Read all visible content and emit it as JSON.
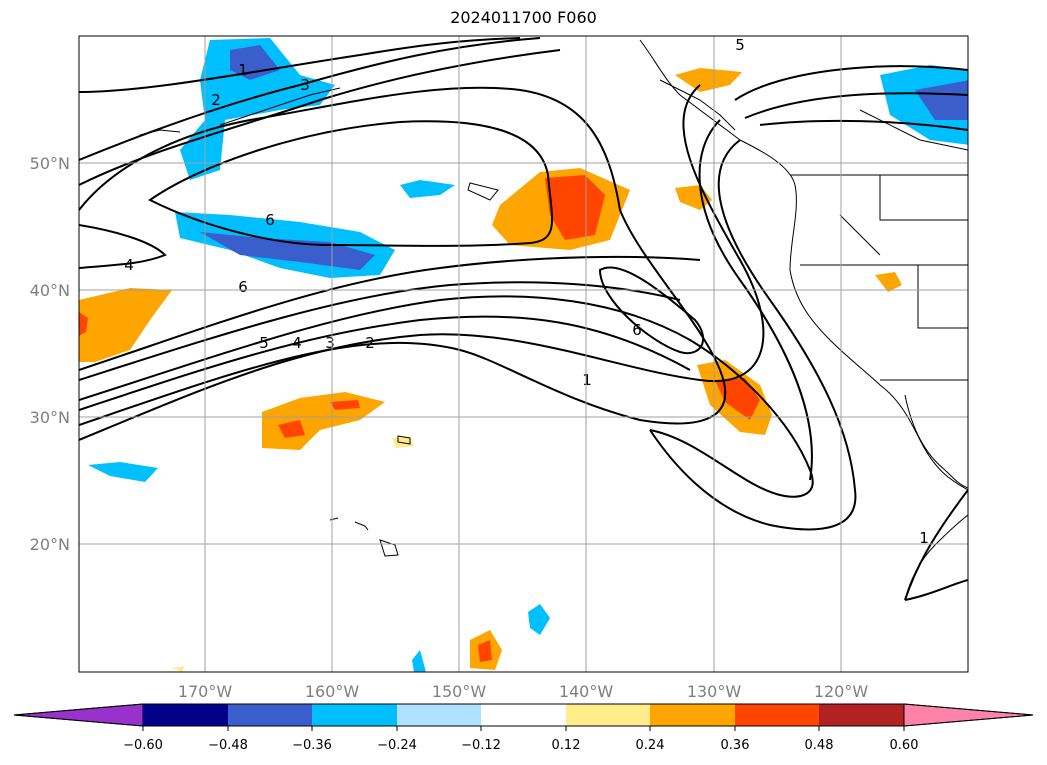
{
  "title": "2024011700 F060",
  "lat_labels": [
    "50°N",
    "40°N",
    "30°N",
    "20°N"
  ],
  "lon_labels": [
    "170°W",
    "160°W",
    "150°W",
    "140°W",
    "130°W",
    "120°W"
  ],
  "colorbar": {
    "ticks": [
      "−0.60",
      "−0.48",
      "−0.36",
      "−0.24",
      "−0.12",
      "0.12",
      "0.24",
      "0.36",
      "0.48",
      "0.60"
    ],
    "colors": [
      "#9932cc",
      "#00008b",
      "#3a5fcd",
      "#00bfff",
      "#b0e2ff",
      "#ffffff",
      "#ffec8b",
      "#ffa500",
      "#ff4500",
      "#b22222",
      "#ff82ab"
    ]
  },
  "contour_labels": [
    "1",
    "2",
    "3",
    "5",
    "6",
    "4",
    "6",
    "5",
    "4",
    "3",
    "2",
    "1",
    "6",
    "1"
  ]
}
